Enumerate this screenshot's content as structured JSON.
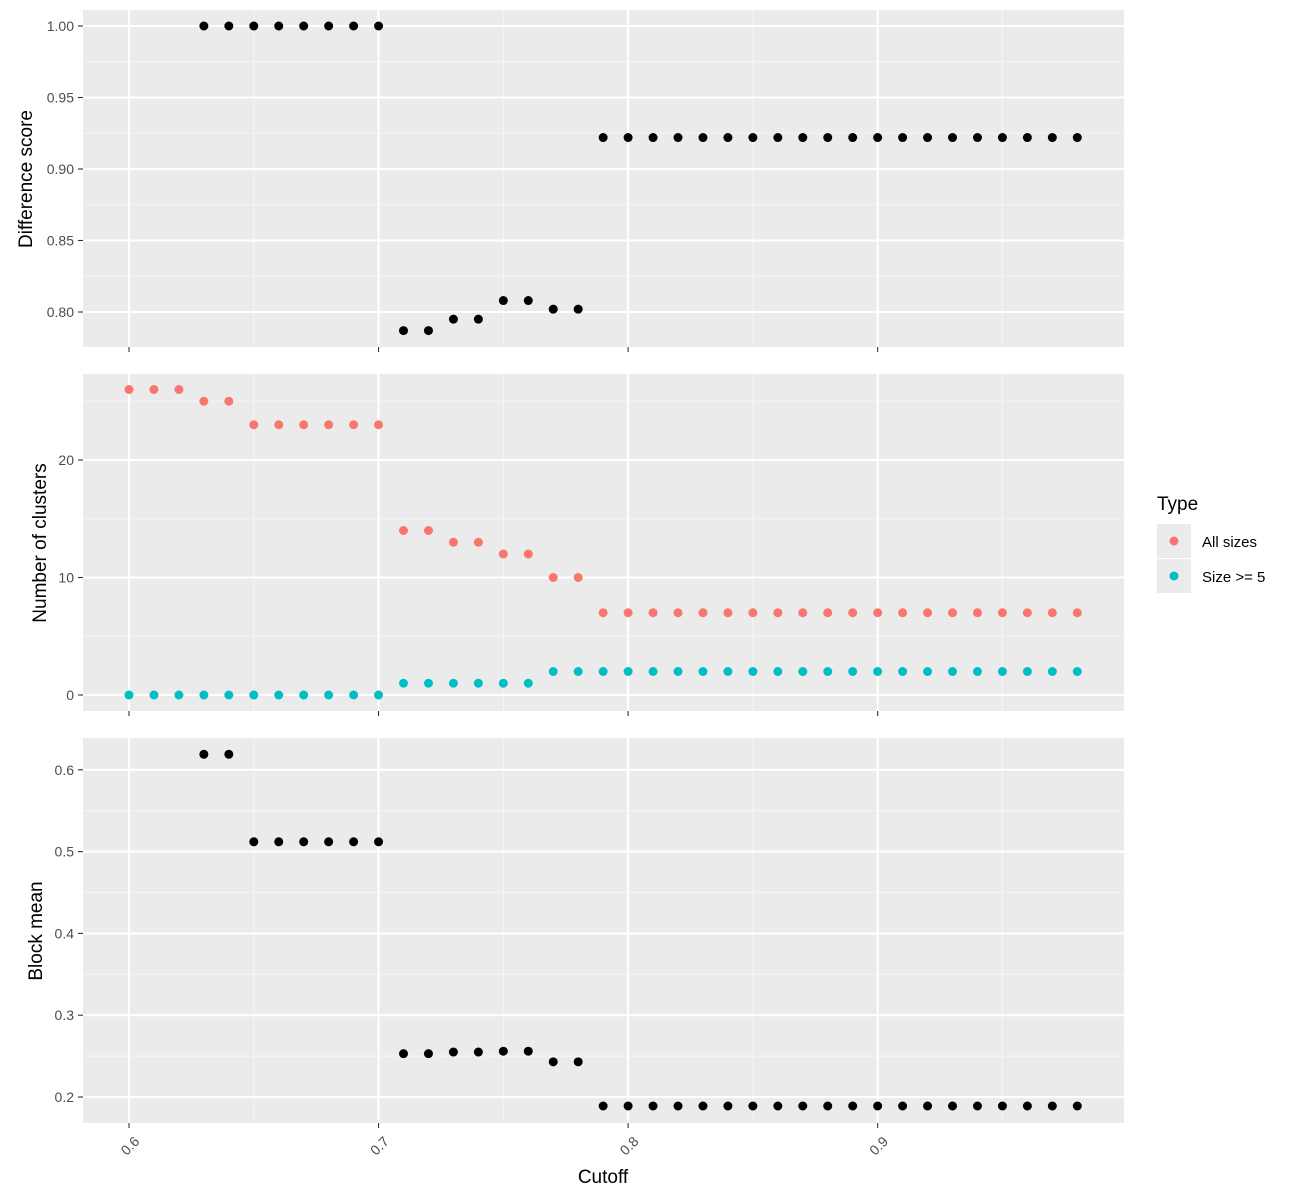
{
  "chart_data": [
    {
      "type": "scatter",
      "ylabel": "Difference score",
      "xlim": [
        0.6,
        0.98
      ],
      "ylim": [
        0.78,
        1.0
      ],
      "xticks": [
        0.6,
        0.7,
        0.8,
        0.9
      ],
      "yticks": [
        "0.80",
        "0.85",
        "0.90",
        "0.95",
        "1.00"
      ],
      "grid": true,
      "series": [
        {
          "color": "#000000",
          "x": [
            0.63,
            0.64,
            0.65,
            0.66,
            0.67,
            0.68,
            0.69,
            0.7,
            0.71,
            0.72,
            0.73,
            0.74,
            0.75,
            0.76,
            0.77,
            0.78,
            0.79,
            0.8,
            0.81,
            0.82,
            0.83,
            0.84,
            0.85,
            0.86,
            0.87,
            0.88,
            0.89,
            0.9,
            0.91,
            0.92,
            0.93,
            0.94,
            0.95,
            0.96,
            0.97,
            0.98
          ],
          "y": [
            1.0,
            1.0,
            1.0,
            1.0,
            1.0,
            1.0,
            1.0,
            1.0,
            0.787,
            0.787,
            0.795,
            0.795,
            0.808,
            0.808,
            0.802,
            0.802,
            0.922,
            0.922,
            0.922,
            0.922,
            0.922,
            0.922,
            0.922,
            0.922,
            0.922,
            0.922,
            0.922,
            0.922,
            0.922,
            0.922,
            0.922,
            0.922,
            0.922,
            0.922,
            0.922,
            0.922
          ]
        }
      ]
    },
    {
      "type": "scatter",
      "ylabel": "Number of clusters",
      "xlim": [
        0.6,
        0.98
      ],
      "ylim": [
        0,
        26
      ],
      "xticks": [
        0.6,
        0.7,
        0.8,
        0.9
      ],
      "yticks": [
        "0",
        "10",
        "20"
      ],
      "grid": true,
      "legend": {
        "title": "Type",
        "position": "right"
      },
      "series": [
        {
          "name": "All sizes",
          "color": "#F8766D",
          "x": [
            0.6,
            0.61,
            0.62,
            0.63,
            0.64,
            0.65,
            0.66,
            0.67,
            0.68,
            0.69,
            0.7,
            0.71,
            0.72,
            0.73,
            0.74,
            0.75,
            0.76,
            0.77,
            0.78,
            0.79,
            0.8,
            0.81,
            0.82,
            0.83,
            0.84,
            0.85,
            0.86,
            0.87,
            0.88,
            0.89,
            0.9,
            0.91,
            0.92,
            0.93,
            0.94,
            0.95,
            0.96,
            0.97,
            0.98
          ],
          "y": [
            26,
            26,
            26,
            25,
            25,
            23,
            23,
            23,
            23,
            23,
            23,
            14,
            14,
            13,
            13,
            12,
            12,
            10,
            10,
            7,
            7,
            7,
            7,
            7,
            7,
            7,
            7,
            7,
            7,
            7,
            7,
            7,
            7,
            7,
            7,
            7,
            7,
            7,
            7
          ]
        },
        {
          "name": "Size >= 5",
          "color": "#00BFC4",
          "x": [
            0.6,
            0.61,
            0.62,
            0.63,
            0.64,
            0.65,
            0.66,
            0.67,
            0.68,
            0.69,
            0.7,
            0.71,
            0.72,
            0.73,
            0.74,
            0.75,
            0.76,
            0.77,
            0.78,
            0.79,
            0.8,
            0.81,
            0.82,
            0.83,
            0.84,
            0.85,
            0.86,
            0.87,
            0.88,
            0.89,
            0.9,
            0.91,
            0.92,
            0.93,
            0.94,
            0.95,
            0.96,
            0.97,
            0.98
          ],
          "y": [
            0,
            0,
            0,
            0,
            0,
            0,
            0,
            0,
            0,
            0,
            0,
            1,
            1,
            1,
            1,
            1,
            1,
            2,
            2,
            2,
            2,
            2,
            2,
            2,
            2,
            2,
            2,
            2,
            2,
            2,
            2,
            2,
            2,
            2,
            2,
            2,
            2,
            2,
            2
          ]
        }
      ]
    },
    {
      "type": "scatter",
      "ylabel": "Block mean",
      "xlabel": "Cutoff",
      "xlim": [
        0.6,
        0.98
      ],
      "ylim": [
        0.19,
        0.62
      ],
      "xticks": [
        0.6,
        0.7,
        0.8,
        0.9
      ],
      "xticklabels": [
        "0.6",
        "0.7",
        "0.8",
        "0.9"
      ],
      "yticks": [
        "0.2",
        "0.3",
        "0.4",
        "0.5",
        "0.6"
      ],
      "grid": true,
      "series": [
        {
          "color": "#000000",
          "x": [
            0.63,
            0.64,
            0.65,
            0.66,
            0.67,
            0.68,
            0.69,
            0.7,
            0.71,
            0.72,
            0.73,
            0.74,
            0.75,
            0.76,
            0.77,
            0.78,
            0.79,
            0.8,
            0.81,
            0.82,
            0.83,
            0.84,
            0.85,
            0.86,
            0.87,
            0.88,
            0.89,
            0.9,
            0.91,
            0.92,
            0.93,
            0.94,
            0.95,
            0.96,
            0.97,
            0.98
          ],
          "y": [
            0.619,
            0.619,
            0.512,
            0.512,
            0.512,
            0.512,
            0.512,
            0.512,
            0.253,
            0.253,
            0.255,
            0.255,
            0.256,
            0.256,
            0.243,
            0.243,
            0.189,
            0.189,
            0.189,
            0.189,
            0.189,
            0.189,
            0.189,
            0.189,
            0.189,
            0.189,
            0.189,
            0.189,
            0.189,
            0.189,
            0.189,
            0.189,
            0.189,
            0.189,
            0.189,
            0.189
          ]
        }
      ]
    }
  ]
}
